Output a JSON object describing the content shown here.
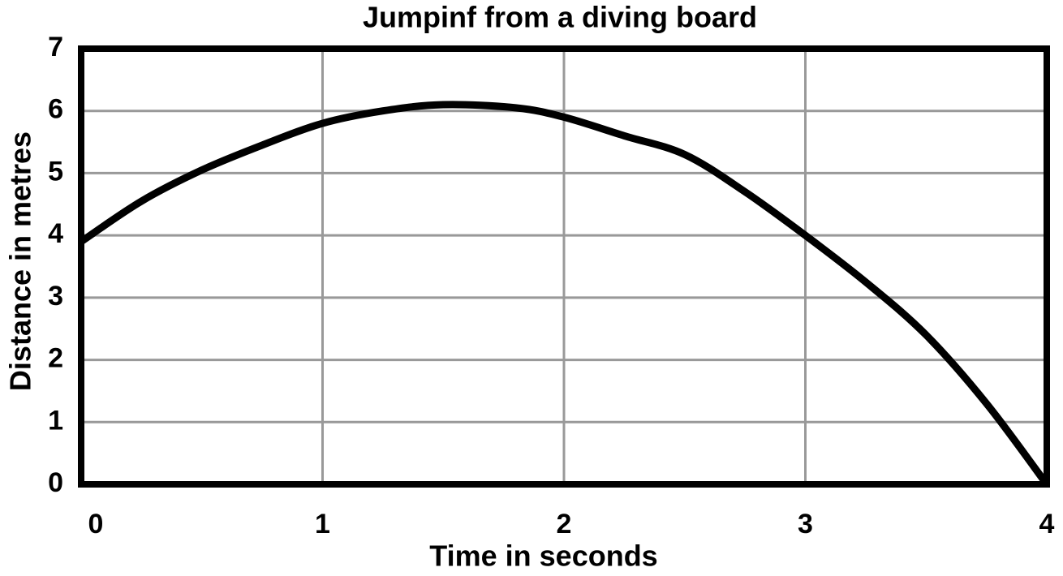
{
  "chart_data": {
    "type": "line",
    "title": "Jumpinf from a diving board",
    "x_label": "Time in seconds",
    "y_label": "Distance in metres",
    "x": [
      0,
      0.25,
      0.5,
      0.75,
      1,
      1.25,
      1.5,
      1.8,
      2,
      2.25,
      2.5,
      2.75,
      3,
      3.25,
      3.5,
      3.75,
      4
    ],
    "series": [
      {
        "color": "#000000",
        "values": [
          3.9,
          4.55,
          5.05,
          5.45,
          5.8,
          6.0,
          6.1,
          6.05,
          5.9,
          5.6,
          5.3,
          4.7,
          4.0,
          3.25,
          2.4,
          1.3,
          0
        ]
      }
    ],
    "xlim": [
      0,
      4
    ],
    "xticks": [
      0,
      1,
      2,
      3,
      4
    ],
    "ylim": [
      0,
      7
    ],
    "yticks": [
      0,
      1,
      2,
      3,
      4,
      5,
      6,
      7
    ],
    "grid": true
  }
}
